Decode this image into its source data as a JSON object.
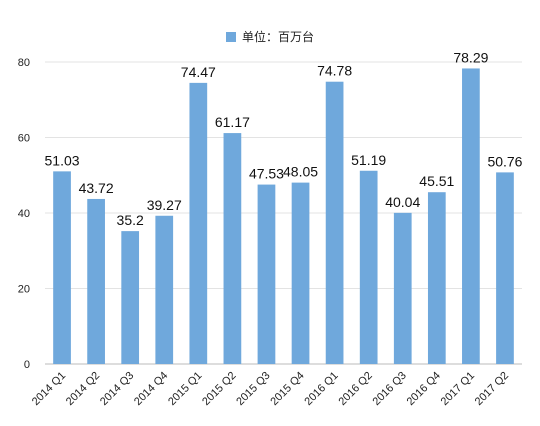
{
  "chart_data": {
    "type": "bar",
    "categories": [
      "2014 Q1",
      "2014 Q2",
      "2014 Q3",
      "2014 Q4",
      "2015 Q1",
      "2015 Q2",
      "2015 Q3",
      "2015 Q4",
      "2016 Q1",
      "2016 Q2",
      "2016 Q3",
      "2016 Q4",
      "2017 Q1",
      "2017 Q2"
    ],
    "series": [
      {
        "name": "单位：百万台",
        "values": [
          51.03,
          43.72,
          35.2,
          39.27,
          74.47,
          61.17,
          47.53,
          48.05,
          74.78,
          51.19,
          40.04,
          45.51,
          78.29,
          50.76
        ]
      }
    ],
    "data_labels": [
      "51.03",
      "43.72",
      "35.2",
      "39.27",
      "74.47",
      "61.17",
      "47.53",
      "48.05",
      "74.78",
      "51.19",
      "40.04",
      "45.51",
      "78.29",
      "50.76"
    ],
    "y_ticks": [
      "0",
      "20",
      "40",
      "60",
      "80"
    ],
    "ylim": [
      0,
      80
    ],
    "grid": true,
    "legend_position": "top-center",
    "bar_color": "#6fa8dc"
  }
}
